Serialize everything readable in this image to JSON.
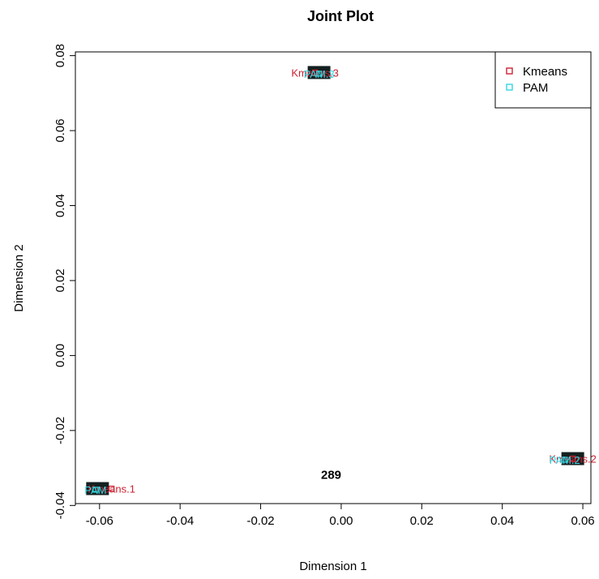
{
  "chart_data": {
    "type": "scatter",
    "title": "Joint Plot",
    "xlabel": "Dimension 1",
    "ylabel": "Dimension 2",
    "xlim": [
      -0.066,
      0.062
    ],
    "ylim": [
      -0.0395,
      0.081
    ],
    "xticks": [
      -0.06,
      -0.04,
      -0.02,
      0.0,
      0.02,
      0.04,
      0.06
    ],
    "yticks": [
      -0.04,
      -0.02,
      0.0,
      0.02,
      0.04,
      0.06,
      0.08
    ],
    "xtick_labels": [
      "-0.06",
      "-0.04",
      "-0.02",
      "0.00",
      "0.02",
      "0.04",
      "0.06"
    ],
    "ytick_labels": [
      "-0.04",
      "-0.02",
      "0.00",
      "0.02",
      "0.04",
      "0.06",
      "0.08"
    ],
    "grid": false,
    "legend": {
      "position": "top-right",
      "entries": [
        {
          "name": "Kmeans",
          "color": "#cc2233"
        },
        {
          "name": "PAM",
          "color": "#33d6e0"
        }
      ]
    },
    "observation_clusters": [
      {
        "x": -0.0605,
        "y": -0.0355,
        "label": ""
      },
      {
        "x": -0.0055,
        "y": 0.0755,
        "label": ""
      },
      {
        "x": 0.0575,
        "y": -0.0275,
        "label": ""
      },
      {
        "x": -0.0025,
        "y": -0.0318,
        "label": "289"
      }
    ],
    "series": [
      {
        "name": "Kmeans",
        "color": "#cc2233",
        "points": [
          {
            "x": -0.057,
            "y": -0.0355,
            "label": "Kmeans.1"
          },
          {
            "x": 0.0575,
            "y": -0.0275,
            "label": "Kmeans.2"
          },
          {
            "x": -0.0065,
            "y": 0.0755,
            "label": "Kmeans.3"
          }
        ]
      },
      {
        "name": "PAM",
        "color": "#33d6e0",
        "points": [
          {
            "x": -0.061,
            "y": -0.0358,
            "label": "PAM"
          },
          {
            "x": 0.0555,
            "y": -0.0278,
            "label": "PAM.2"
          },
          {
            "x": -0.0055,
            "y": 0.0752,
            "label": "PAM.3"
          }
        ]
      }
    ]
  }
}
